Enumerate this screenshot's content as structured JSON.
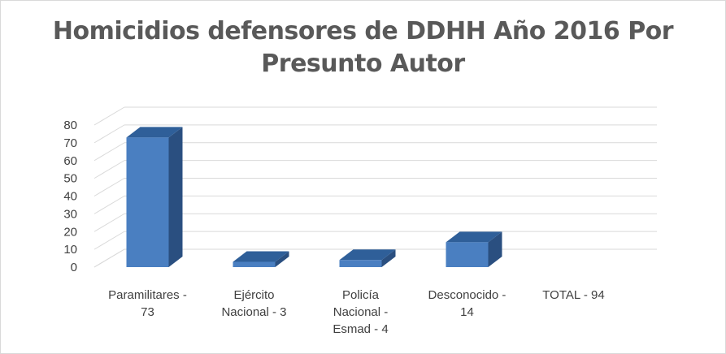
{
  "chart_data": {
    "type": "bar",
    "title": "Homicidios defensores de DDHH Año 2016 Por Presunto Autor",
    "categories": [
      [
        "Paramilitares -",
        "73"
      ],
      [
        "Ejército",
        "Nacional - 3"
      ],
      [
        "Policía",
        "Nacional -",
        "Esmad - 4"
      ],
      [
        "Desconocido -",
        "14"
      ],
      [
        "TOTAL - 94"
      ]
    ],
    "values": [
      73,
      3,
      4,
      14,
      null
    ],
    "ylim": [
      0,
      80
    ],
    "yticks": [
      0,
      10,
      20,
      30,
      40,
      50,
      60,
      70,
      80
    ],
    "grid": true,
    "style": "3d-column",
    "colors": {
      "front": "#4a7fc1",
      "top": "#2f5f99",
      "side": "#2a4f80",
      "grid": "#d9d9d9"
    }
  }
}
